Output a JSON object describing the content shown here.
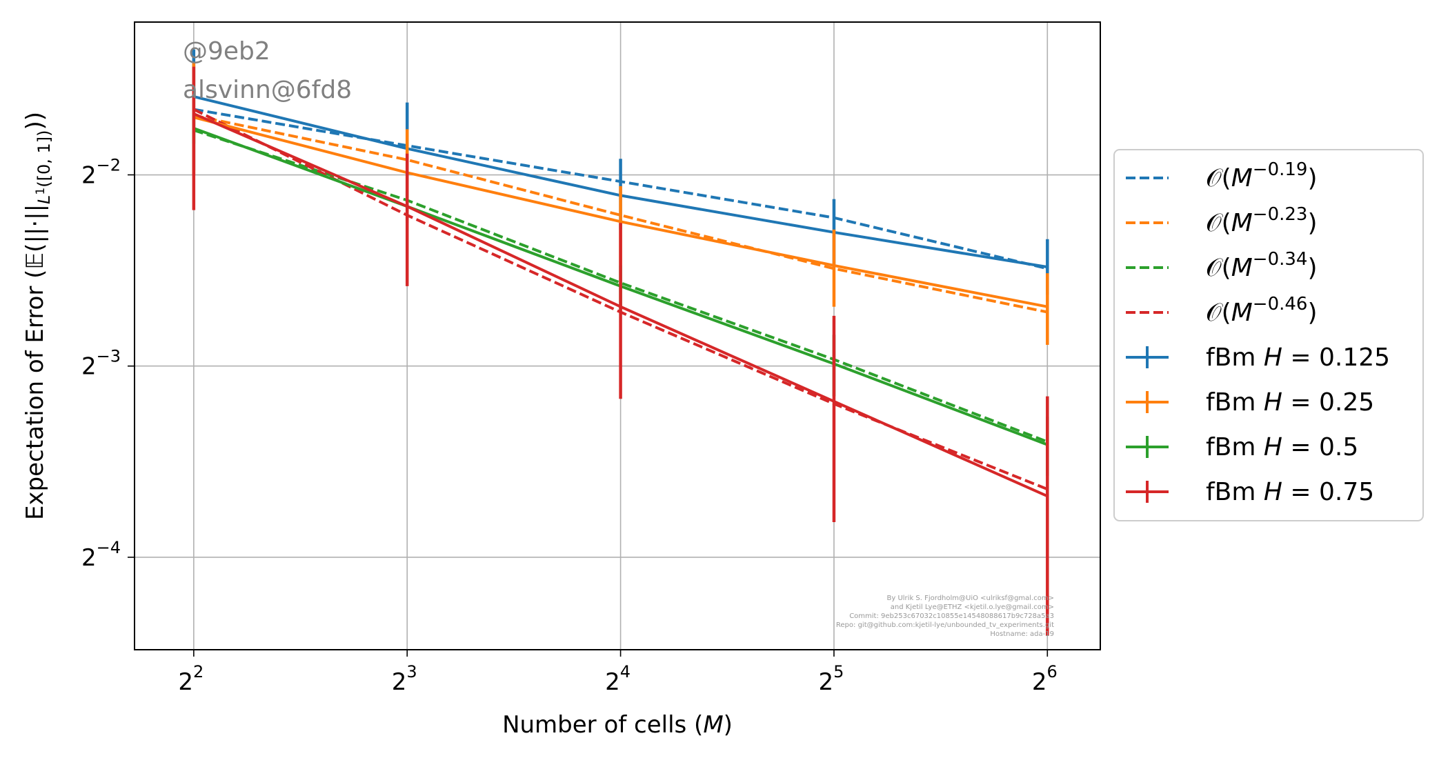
{
  "chart_data": {
    "type": "line",
    "xscale": "log2",
    "yscale": "log2",
    "x": [
      4,
      8,
      16,
      32,
      64
    ],
    "x_tick_labels": [
      {
        "base": "2",
        "exp": "2"
      },
      {
        "base": "2",
        "exp": "3"
      },
      {
        "base": "2",
        "exp": "4"
      },
      {
        "base": "2",
        "exp": "5"
      },
      {
        "base": "2",
        "exp": "6"
      }
    ],
    "y_ticks": [
      0.0625,
      0.125,
      0.25
    ],
    "y_tick_labels": [
      {
        "base": "2",
        "exp": "−4"
      },
      {
        "base": "2",
        "exp": "−3"
      },
      {
        "base": "2",
        "exp": "−2"
      }
    ],
    "xlim": [
      3.3,
      76
    ],
    "ylim": [
      0.0447,
      0.435
    ],
    "xlabel": "Number of cells (M)",
    "ylabel": "Expectation of Error (𝔼(||·||L¹([0,1])))",
    "grid": true,
    "legend_position": "center-right-outside",
    "series": [
      {
        "name": "fBm H = 0.125",
        "color": "#1f77b4",
        "style": "errorbar",
        "values": [
          0.332,
          0.275,
          0.232,
          0.203,
          0.179
        ],
        "err_lo": [
          0.254,
          0.229,
          0.205,
          0.18,
          0.162
        ],
        "err_hi": [
          0.394,
          0.325,
          0.265,
          0.229,
          0.198
        ]
      },
      {
        "name": "fBm H = 0.25",
        "color": "#ff7f0e",
        "style": "errorbar",
        "values": [
          0.308,
          0.252,
          0.211,
          0.18,
          0.155
        ],
        "err_lo": [
          0.25,
          0.21,
          0.18,
          0.155,
          0.135
        ],
        "err_hi": [
          0.375,
          0.295,
          0.24,
          0.205,
          0.175
        ]
      },
      {
        "name": "fBm H = 0.5",
        "color": "#2ca02c",
        "style": "errorbar",
        "values": [
          0.296,
          0.223,
          0.167,
          0.126,
          0.094
        ],
        "err_lo": [
          0.28,
          0.212,
          0.153,
          0.112,
          0.084
        ],
        "err_hi": [
          0.312,
          0.236,
          0.18,
          0.14,
          0.104
        ]
      },
      {
        "name": "fBm H = 0.75",
        "color": "#d62728",
        "style": "errorbar",
        "values": [
          0.312,
          0.223,
          0.155,
          0.11,
          0.078
        ],
        "err_lo": [
          0.22,
          0.167,
          0.111,
          0.071,
          0.047
        ],
        "err_hi": [
          0.37,
          0.27,
          0.21,
          0.15,
          0.112
        ]
      },
      {
        "name": "O(M^−0.19)",
        "label_exp": "−0.19",
        "color": "#1f77b4",
        "style": "dashed",
        "values": [
          0.317,
          0.278,
          0.244,
          0.214,
          0.178
        ]
      },
      {
        "name": "O(M^−0.23)",
        "label_exp": "−0.23",
        "color": "#ff7f0e",
        "style": "dashed",
        "values": [
          0.31,
          0.264,
          0.216,
          0.178,
          0.152
        ]
      },
      {
        "name": "O(M^−0.34)",
        "label_exp": "−0.34",
        "color": "#2ca02c",
        "style": "dashed",
        "values": [
          0.294,
          0.228,
          0.169,
          0.128,
          0.095
        ]
      },
      {
        "name": "O(M^−0.46)",
        "label_exp": "−0.46",
        "color": "#d62728",
        "style": "dashed",
        "values": [
          0.317,
          0.216,
          0.152,
          0.109,
          0.08
        ]
      }
    ],
    "legend_items": [
      {
        "kind": "dashed",
        "color": "#1f77b4",
        "prefix": "𝒪(M",
        "exp": "−0.19",
        "suffix": ")"
      },
      {
        "kind": "dashed",
        "color": "#ff7f0e",
        "prefix": "𝒪(M",
        "exp": "−0.23",
        "suffix": ")"
      },
      {
        "kind": "dashed",
        "color": "#2ca02c",
        "prefix": "𝒪(M",
        "exp": "−0.34",
        "suffix": ")"
      },
      {
        "kind": "dashed",
        "color": "#d62728",
        "prefix": "𝒪(M",
        "exp": "−0.46",
        "suffix": ")"
      },
      {
        "kind": "errorbar",
        "color": "#1f77b4",
        "prefix": "fBm H = 0.125"
      },
      {
        "kind": "errorbar",
        "color": "#ff7f0e",
        "prefix": "fBm H = 0.25"
      },
      {
        "kind": "errorbar",
        "color": "#2ca02c",
        "prefix": "fBm H = 0.5"
      },
      {
        "kind": "errorbar",
        "color": "#d62728",
        "prefix": "fBm H = 0.75"
      }
    ]
  },
  "watermark": {
    "line1": "@9eb2",
    "line2": "alsvinn@6fd8"
  },
  "credits": [
    "By Ulrik S. Fjordholm@UiO <ulriksf@gmal.com>",
    "and Kjetil Lye@ETHZ <kjetil.o.lye@gmail.com>",
    "Commit: 9eb253c67032c10855e14548088617b9c728a5a3",
    "Repo: git@github.com:kjetil-lye/unbounded_tv_experiments.git",
    "Hostname: ada-19"
  ]
}
